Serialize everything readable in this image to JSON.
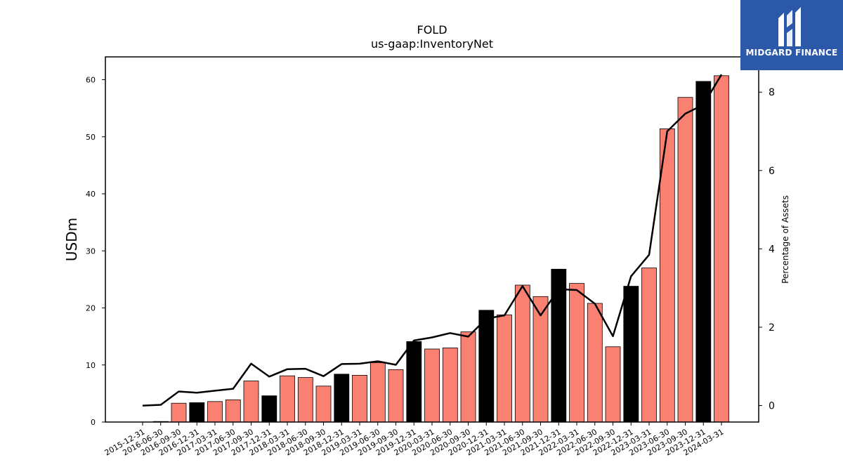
{
  "chart_data": {
    "type": "bar",
    "title": "FOLD",
    "subtitle": "us-gaap:InventoryNet",
    "ylabel": "USDm",
    "ylabel_right": "Percentage of Assets",
    "ylim": [
      0,
      64
    ],
    "ylim_right": [
      -0.42,
      8.9
    ],
    "yticks": [
      "0",
      "10",
      "20",
      "30",
      "40",
      "50",
      "60"
    ],
    "yticks_right": [
      "0",
      "2",
      "4",
      "6",
      "8"
    ],
    "categories": [
      "2015-12-31",
      "2016-06-30",
      "2016-09-30",
      "2016-12-31",
      "2017-03-31",
      "2017-06-30",
      "2017-09-30",
      "2017-12-31",
      "2018-03-31",
      "2018-06-30",
      "2018-09-30",
      "2018-12-31",
      "2019-03-31",
      "2019-06-30",
      "2019-09-30",
      "2019-12-31",
      "2020-03-31",
      "2020-06-30",
      "2020-09-30",
      "2020-12-31",
      "2021-03-31",
      "2021-06-30",
      "2021-09-30",
      "2021-12-31",
      "2022-03-31",
      "2022-06-30",
      "2022-09-30",
      "2022-12-31",
      "2023-03-31",
      "2023-06-30",
      "2023-09-30",
      "2023-12-31",
      "2024-03-31"
    ],
    "series": [
      {
        "type": "bar",
        "values": [
          0,
          0.1,
          3.3,
          3.4,
          3.6,
          3.9,
          7.2,
          4.6,
          8.1,
          7.8,
          6.3,
          8.4,
          8.2,
          10.4,
          9.2,
          14.1,
          12.8,
          13.0,
          15.8,
          19.6,
          18.8,
          24.0,
          22.0,
          26.8,
          24.3,
          20.8,
          13.2,
          23.8,
          27.0,
          51.4,
          56.9,
          59.7,
          60.7
        ],
        "quarter_end": [
          false,
          false,
          false,
          true,
          false,
          false,
          false,
          true,
          false,
          false,
          false,
          true,
          false,
          false,
          false,
          true,
          false,
          false,
          false,
          true,
          false,
          false,
          false,
          true,
          false,
          false,
          false,
          true,
          false,
          false,
          false,
          true,
          false
        ],
        "color_default": "#fa8072",
        "color_year_end": "#000000"
      },
      {
        "type": "line",
        "axis": "right",
        "color": "#000000",
        "values": [
          0.0,
          0.02,
          0.36,
          0.33,
          0.38,
          0.43,
          1.07,
          0.74,
          0.93,
          0.94,
          0.75,
          1.06,
          1.07,
          1.13,
          1.04,
          1.66,
          1.74,
          1.85,
          1.76,
          2.22,
          2.3,
          3.05,
          2.3,
          2.97,
          2.95,
          2.6,
          1.77,
          3.3,
          3.85,
          7.0,
          7.45,
          7.68,
          8.45
        ]
      }
    ]
  },
  "logo": {
    "text": "MIDGARD FINANCE"
  }
}
